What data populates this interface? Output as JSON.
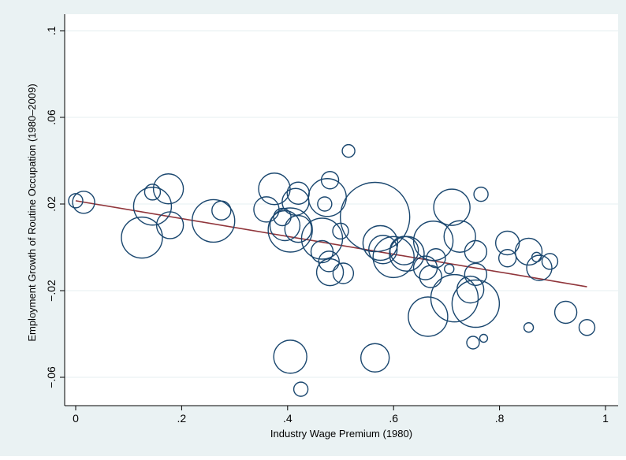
{
  "chart_data": {
    "type": "scatter",
    "title": "",
    "xlabel": "Industry Wage Premium (1980)",
    "ylabel": "Employment Growth of Routine Occupation (1980–2009)",
    "xlim": [
      0,
      1
    ],
    "ylim": [
      -0.06,
      0.1
    ],
    "x_ticks": [
      0,
      0.2,
      0.4,
      0.6,
      0.8,
      1
    ],
    "x_tick_labels": [
      "0",
      ".2",
      ".4",
      ".6",
      ".8",
      "1"
    ],
    "y_ticks": [
      -0.06,
      -0.02,
      0.02,
      0.06,
      0.1
    ],
    "y_tick_labels": [
      "−.06",
      "−.02",
      ".02",
      ".06",
      ".1"
    ],
    "grid": "horizontal",
    "legend": "none",
    "marker": "hollow circle, size proportional to industry weight",
    "colors": {
      "outer_background": "#eaf2f3",
      "plot_background": "#ffffff",
      "markers": "#1a476f",
      "fit_line": "#90353b",
      "grid": "#eaf2f3"
    },
    "fit_line": {
      "x": [
        0,
        0.965
      ],
      "y": [
        0.0215,
        -0.0182
      ]
    },
    "points": [
      {
        "x": 0.0,
        "y": 0.0215,
        "size": 9
      },
      {
        "x": 0.015,
        "y": 0.0208,
        "size": 14
      },
      {
        "x": 0.125,
        "y": 0.0045,
        "size": 26
      },
      {
        "x": 0.145,
        "y": 0.0255,
        "size": 10
      },
      {
        "x": 0.145,
        "y": 0.019,
        "size": 24
      },
      {
        "x": 0.175,
        "y": 0.027,
        "size": 19
      },
      {
        "x": 0.178,
        "y": 0.0102,
        "size": 17
      },
      {
        "x": 0.26,
        "y": 0.0122,
        "size": 27
      },
      {
        "x": 0.275,
        "y": 0.017,
        "size": 12
      },
      {
        "x": 0.36,
        "y": 0.0175,
        "size": 16
      },
      {
        "x": 0.375,
        "y": 0.027,
        "size": 20
      },
      {
        "x": 0.39,
        "y": 0.014,
        "size": 11
      },
      {
        "x": 0.395,
        "y": 0.01,
        "size": 19
      },
      {
        "x": 0.405,
        "y": 0.008,
        "size": 28
      },
      {
        "x": 0.415,
        "y": 0.021,
        "size": 17
      },
      {
        "x": 0.42,
        "y": 0.025,
        "size": 14
      },
      {
        "x": 0.42,
        "y": 0.0085,
        "size": 17
      },
      {
        "x": 0.465,
        "y": 0.004,
        "size": 26
      },
      {
        "x": 0.465,
        "y": -0.002,
        "size": 14
      },
      {
        "x": 0.47,
        "y": 0.02,
        "size": 9
      },
      {
        "x": 0.475,
        "y": 0.023,
        "size": 24
      },
      {
        "x": 0.478,
        "y": -0.0065,
        "size": 13
      },
      {
        "x": 0.48,
        "y": 0.031,
        "size": 11
      },
      {
        "x": 0.48,
        "y": -0.0115,
        "size": 17
      },
      {
        "x": 0.5,
        "y": 0.0075,
        "size": 10
      },
      {
        "x": 0.505,
        "y": -0.012,
        "size": 13
      },
      {
        "x": 0.515,
        "y": 0.0445,
        "size": 8
      },
      {
        "x": 0.565,
        "y": 0.014,
        "size": 44
      },
      {
        "x": 0.575,
        "y": 0.002,
        "size": 22
      },
      {
        "x": 0.58,
        "y": -0.001,
        "size": 18
      },
      {
        "x": 0.6,
        "y": -0.0045,
        "size": 26
      },
      {
        "x": 0.62,
        "y": -0.0015,
        "size": 18
      },
      {
        "x": 0.625,
        "y": -0.003,
        "size": 22
      },
      {
        "x": 0.66,
        "y": -0.0095,
        "size": 15
      },
      {
        "x": 0.665,
        "y": -0.032,
        "size": 25
      },
      {
        "x": 0.67,
        "y": -0.0135,
        "size": 14
      },
      {
        "x": 0.675,
        "y": 0.003,
        "size": 25
      },
      {
        "x": 0.68,
        "y": -0.005,
        "size": 12
      },
      {
        "x": 0.705,
        "y": -0.01,
        "size": 6
      },
      {
        "x": 0.71,
        "y": 0.0185,
        "size": 23
      },
      {
        "x": 0.715,
        "y": -0.0235,
        "size": 30
      },
      {
        "x": 0.725,
        "y": 0.005,
        "size": 20
      },
      {
        "x": 0.745,
        "y": -0.0195,
        "size": 17
      },
      {
        "x": 0.75,
        "y": -0.044,
        "size": 8
      },
      {
        "x": 0.755,
        "y": -0.002,
        "size": 14
      },
      {
        "x": 0.755,
        "y": -0.0125,
        "size": 14
      },
      {
        "x": 0.755,
        "y": -0.026,
        "size": 30
      },
      {
        "x": 0.765,
        "y": 0.0245,
        "size": 9
      },
      {
        "x": 0.77,
        "y": -0.042,
        "size": 5
      },
      {
        "x": 0.815,
        "y": 0.002,
        "size": 15
      },
      {
        "x": 0.815,
        "y": -0.005,
        "size": 11
      },
      {
        "x": 0.855,
        "y": -0.037,
        "size": 6
      },
      {
        "x": 0.855,
        "y": -0.002,
        "size": 17
      },
      {
        "x": 0.87,
        "y": -0.0045,
        "size": 6
      },
      {
        "x": 0.875,
        "y": -0.0095,
        "size": 16
      },
      {
        "x": 0.895,
        "y": -0.0065,
        "size": 10
      },
      {
        "x": 0.925,
        "y": -0.03,
        "size": 14
      },
      {
        "x": 0.965,
        "y": -0.037,
        "size": 10
      },
      {
        "x": 0.405,
        "y": -0.0505,
        "size": 21
      },
      {
        "x": 0.425,
        "y": -0.0655,
        "size": 9
      },
      {
        "x": 0.565,
        "y": -0.051,
        "size": 18
      }
    ]
  }
}
